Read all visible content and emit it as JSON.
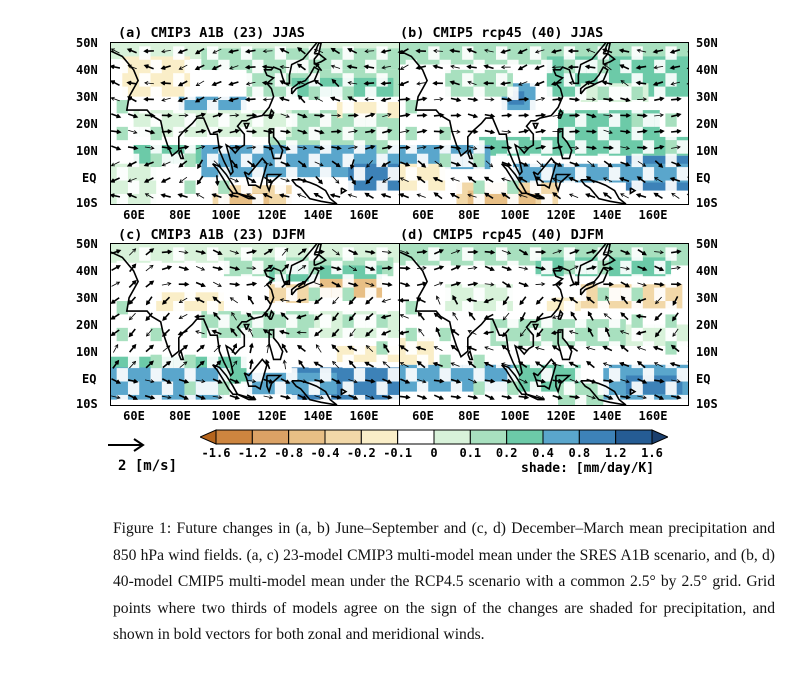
{
  "panels": [
    {
      "title": "(a) CMIP3 A1B (23) JJAS"
    },
    {
      "title": "(b) CMIP5 rcp45 (40) JJAS"
    },
    {
      "title": "(c) CMIP3 A1B (23) DJFM"
    },
    {
      "title": "(d) CMIP5 rcp45 (40) DJFM"
    }
  ],
  "lat_labels": [
    "50N",
    "40N",
    "30N",
    "20N",
    "10N",
    "EQ",
    "10S"
  ],
  "lon_labels": [
    "60E",
    "80E",
    "100E",
    "120E",
    "140E",
    "160E"
  ],
  "reference_vector": {
    "label": "2 [m/s]"
  },
  "colorbar": {
    "labels": [
      "-1.6",
      "-1.2",
      "-0.8",
      "-0.4",
      "-0.2",
      "-0.1",
      "0",
      "0.1",
      "0.2",
      "0.4",
      "0.8",
      "1.2",
      "1.6"
    ],
    "colors": [
      "#b5651d",
      "#cd853f",
      "#dba265",
      "#e8bf85",
      "#f2d8a8",
      "#faeec8",
      "#ffffff",
      "#d8f2da",
      "#a8e0bf",
      "#6ccaa8",
      "#5aa6cc",
      "#3d82b8",
      "#255c94",
      "#1a3f6e"
    ],
    "unit_label": "shade: [mm/day/K]"
  },
  "caption": "Figure 1: Future changes in (a, b) June–September and (c, d) December–March mean precipitation and 850 hPa wind fields. (a, c) 23-model CMIP3 multi-model mean under the SRES A1B scenario, and (b, d) 40-model CMIP5 multi-model mean under the RCP4.5 scenario with a common 2.5° by 2.5° grid. Grid points where two thirds of models agree on the sign of the changes are shaded for precipitation, and shown in bold vectors for both zonal and meridional winds."
}
